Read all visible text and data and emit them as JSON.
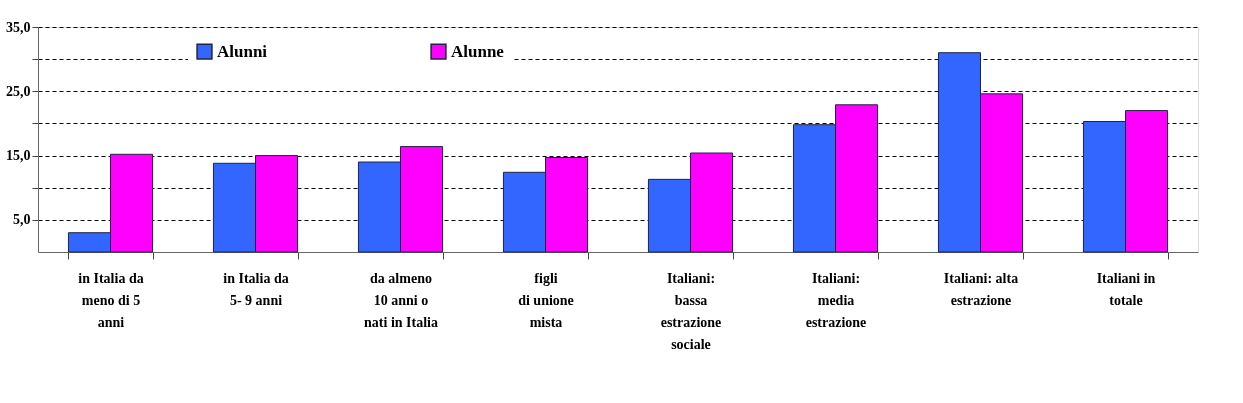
{
  "chart_data": {
    "type": "bar",
    "categories": [
      "in Italia da\nmeno di 5\nanni",
      "in Italia da\n5- 9 anni",
      "da almeno\n10 anni o\nnati in Italia",
      "figli\ndi unione\nmista",
      "Italiani:\nbassa\nestrazione\nsociale",
      "Italiani:\nmedia\nestrazione",
      "Italiani: alta\nestrazione",
      "Italiani in\ntotale"
    ],
    "series": [
      {
        "name": "Alunni",
        "color": "#3366ff",
        "values": [
          3.0,
          13.8,
          14.0,
          12.4,
          11.3,
          19.8,
          31.0,
          20.3
        ]
      },
      {
        "name": "Alunne",
        "color": "#ff00ff",
        "values": [
          15.2,
          15.0,
          16.4,
          14.7,
          15.4,
          22.9,
          24.6,
          22.0
        ]
      }
    ],
    "ylim": [
      0,
      35
    ],
    "yticks": [
      {
        "value": 5,
        "label": "5,0"
      },
      {
        "value": 10,
        "label": null
      },
      {
        "value": 15,
        "label": "15,0"
      },
      {
        "value": 20,
        "label": null
      },
      {
        "value": 25,
        "label": "25,0"
      },
      {
        "value": 30,
        "label": null
      },
      {
        "value": 35,
        "label": "35,0"
      }
    ],
    "grid": "y",
    "legend": "top left"
  }
}
